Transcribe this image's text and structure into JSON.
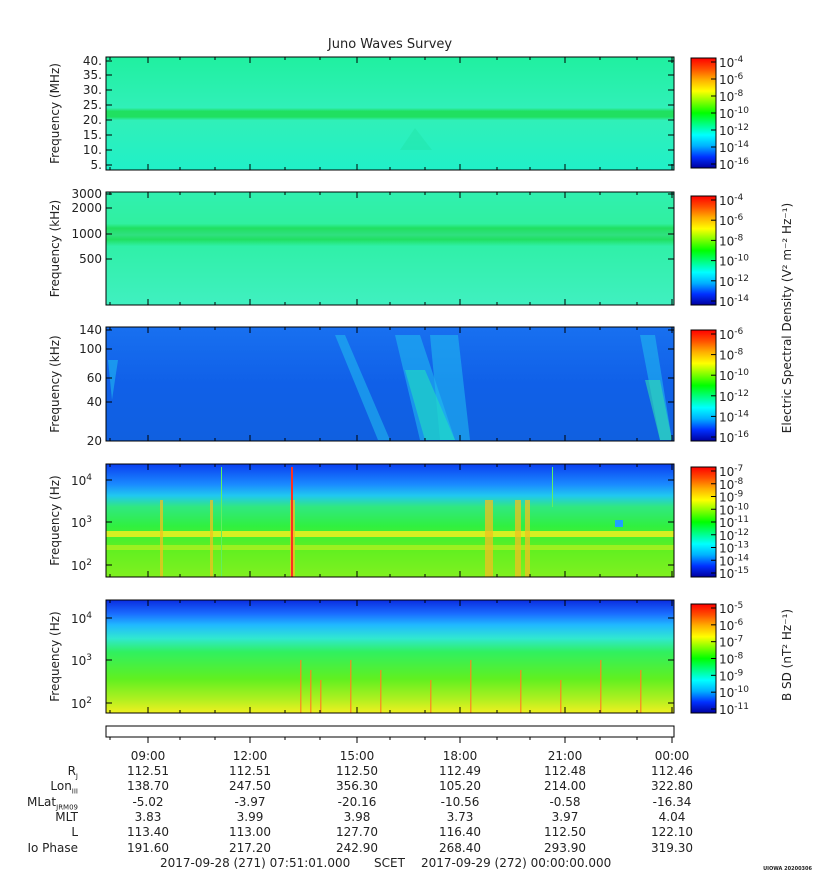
{
  "title": "Juno Waves Survey",
  "colormap_stops": [
    "#0000a0",
    "#0030ff",
    "#00b0ff",
    "#00ffff",
    "#00ff80",
    "#00ff00",
    "#80ff00",
    "#ffff00",
    "#ffb000",
    "#ff5000",
    "#ff0000"
  ],
  "panels": [
    {
      "ylabel": "Frequency (MHz)",
      "yticks": [
        "40.",
        "35.",
        "30.",
        "25.",
        "20.",
        "15.",
        "10.",
        "5."
      ],
      "colorbar_ticks": [
        {
          "label": "10",
          "exp": "-4"
        },
        {
          "label": "10",
          "exp": "-6"
        },
        {
          "label": "10",
          "exp": "-8"
        },
        {
          "label": "10",
          "exp": "-10"
        },
        {
          "label": "10",
          "exp": "-12"
        },
        {
          "label": "10",
          "exp": "-14"
        },
        {
          "label": "10",
          "exp": "-16"
        }
      ]
    },
    {
      "ylabel": "Frequency (kHz)",
      "yticks": [
        "3000",
        "2000",
        "1000",
        "500"
      ],
      "colorbar_ticks": [
        {
          "label": "10",
          "exp": "-4"
        },
        {
          "label": "10",
          "exp": "-6"
        },
        {
          "label": "10",
          "exp": "-8"
        },
        {
          "label": "10",
          "exp": "-10"
        },
        {
          "label": "10",
          "exp": "-12"
        },
        {
          "label": "10",
          "exp": "-14"
        }
      ]
    },
    {
      "ylabel": "Frequency (kHz)",
      "yticks": [
        "140",
        "100",
        "60",
        "40",
        "20"
      ],
      "colorbar_ticks": [
        {
          "label": "10",
          "exp": "-6"
        },
        {
          "label": "10",
          "exp": "-8"
        },
        {
          "label": "10",
          "exp": "-10"
        },
        {
          "label": "10",
          "exp": "-12"
        },
        {
          "label": "10",
          "exp": "-14"
        },
        {
          "label": "10",
          "exp": "-16"
        }
      ]
    },
    {
      "ylabel": "Frequency (Hz)",
      "yticks": [
        {
          "label": "10",
          "exp": "4"
        },
        {
          "label": "10",
          "exp": "3"
        },
        {
          "label": "10",
          "exp": "2"
        }
      ],
      "colorbar_ticks": [
        {
          "label": "10",
          "exp": "-7"
        },
        {
          "label": "10",
          "exp": "-8"
        },
        {
          "label": "10",
          "exp": "-9"
        },
        {
          "label": "10",
          "exp": "-10"
        },
        {
          "label": "10",
          "exp": "-11"
        },
        {
          "label": "10",
          "exp": "-12"
        },
        {
          "label": "10",
          "exp": "-13"
        },
        {
          "label": "10",
          "exp": "-14"
        },
        {
          "label": "10",
          "exp": "-15"
        }
      ]
    },
    {
      "ylabel": "Frequency (Hz)",
      "yticks": [
        {
          "label": "10",
          "exp": "4"
        },
        {
          "label": "10",
          "exp": "3"
        },
        {
          "label": "10",
          "exp": "2"
        }
      ],
      "colorbar_ticks": [
        {
          "label": "10",
          "exp": "-5"
        },
        {
          "label": "10",
          "exp": "-6"
        },
        {
          "label": "10",
          "exp": "-7"
        },
        {
          "label": "10",
          "exp": "-8"
        },
        {
          "label": "10",
          "exp": "-9"
        },
        {
          "label": "10",
          "exp": "-10"
        },
        {
          "label": "10",
          "exp": "-11"
        }
      ]
    }
  ],
  "colorbar_label_electric": "Electric Spectral Density (V² m⁻² Hz⁻¹)",
  "colorbar_label_magnetic": "B SD (nT² Hz⁻¹)",
  "time_ticks": [
    "09:00",
    "12:00",
    "15:00",
    "18:00",
    "21:00",
    "00:00"
  ],
  "ephemeris": [
    {
      "label": "R",
      "sub": "J",
      "values": [
        "112.51",
        "112.51",
        "112.50",
        "112.49",
        "112.48",
        "112.46"
      ]
    },
    {
      "label": "Lon",
      "sub": "III",
      "values": [
        "138.70",
        "247.50",
        "356.30",
        "105.20",
        "214.00",
        "322.80"
      ]
    },
    {
      "label": "MLat",
      "sub": "JRM09",
      "values": [
        "-5.02",
        "-3.97",
        "-20.16",
        "-10.56",
        "-0.58",
        "-16.34"
      ]
    },
    {
      "label": "MLT",
      "sub": "",
      "values": [
        "3.83",
        "3.99",
        "3.98",
        "3.73",
        "3.97",
        "4.04"
      ]
    },
    {
      "label": "L",
      "sub": "",
      "values": [
        "113.40",
        "113.00",
        "127.70",
        "116.40",
        "112.50",
        "122.10"
      ]
    },
    {
      "label": "Io Phase",
      "sub": "",
      "values": [
        "191.60",
        "217.20",
        "242.90",
        "268.40",
        "293.90",
        "319.30"
      ]
    }
  ],
  "footer": {
    "start": "2017-09-28 (271) 07:51:01.000",
    "mid": "SCET",
    "end": "2017-09-29 (272) 00:00:00.000"
  },
  "stamp": "UIOWA 20200306",
  "chart_data": {
    "type": "heatmap",
    "title": "Juno Waves Survey",
    "x": {
      "type": "time",
      "ticks": [
        "09:00",
        "12:00",
        "15:00",
        "18:00",
        "21:00",
        "00:00"
      ]
    },
    "panels": [
      {
        "ylabel": "Frequency (MHz)",
        "ylim": [
          4,
          41
        ],
        "scale": "linear",
        "zlim_log10": [
          -17,
          -4
        ],
        "zlabel": "Electric Spectral Density (V² m⁻² Hz⁻¹)"
      },
      {
        "ylabel": "Frequency (kHz)",
        "ylim": [
          150,
          3000
        ],
        "scale": "log",
        "zlim_log10": [
          -15,
          -4
        ],
        "zlabel": "Electric Spectral Density (V² m⁻² Hz⁻¹)"
      },
      {
        "ylabel": "Frequency (kHz)",
        "ylim": [
          20,
          140
        ],
        "scale": "log",
        "zlim_log10": [
          -16,
          -6
        ],
        "zlabel": "Electric Spectral Density (V² m⁻² Hz⁻¹)"
      },
      {
        "ylabel": "Frequency (Hz)",
        "ylim": [
          50,
          20000
        ],
        "scale": "log",
        "zlim_log10": [
          -15,
          -7
        ],
        "zlabel": "Electric Spectral Density (V² m⁻² Hz⁻¹)"
      },
      {
        "ylabel": "Frequency (Hz)",
        "ylim": [
          50,
          20000
        ],
        "scale": "log",
        "zlim_log10": [
          -11,
          -4.5
        ],
        "zlabel": "B SD (nT² Hz⁻¹)"
      }
    ]
  }
}
